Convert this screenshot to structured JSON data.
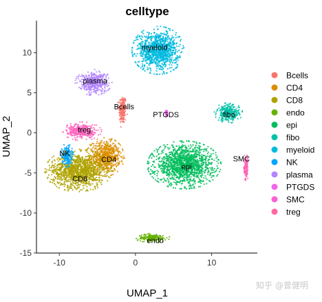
{
  "chart_data": {
    "type": "scatter",
    "title": "celltype",
    "xlabel": "UMAP_1",
    "ylabel": "UMAP_2",
    "xlim": [
      -13,
      16
    ],
    "ylim": [
      -15,
      14
    ],
    "xticks": [
      -10,
      0,
      10
    ],
    "yticks": [
      -15,
      -10,
      -5,
      0,
      5,
      10
    ],
    "grid": false,
    "legend_position": "right",
    "point_size": "tiny",
    "clusters": [
      {
        "name": "Bcells",
        "color": "#F8766D",
        "label": "Bcells",
        "label_pos": [
          -1.5,
          3.2
        ],
        "shape": "ellipse",
        "center": [
          -1.7,
          2.9
        ],
        "spread": [
          0.55,
          2.0
        ]
      },
      {
        "name": "CD4",
        "color": "#DB8E00",
        "label": "CD4",
        "label_pos": [
          -3.5,
          -3.4
        ],
        "shape": "ellipse",
        "center": [
          -4.0,
          -3.0
        ],
        "spread": [
          2.2,
          2.1
        ]
      },
      {
        "name": "CD8",
        "color": "#AEA200",
        "label": "CD8",
        "label_pos": [
          -7.3,
          -5.8
        ],
        "shape": "ellipse",
        "center": [
          -7.5,
          -4.7
        ],
        "spread": [
          3.8,
          2.3
        ]
      },
      {
        "name": "endo",
        "color": "#64B200",
        "label": "endo",
        "label_pos": [
          2.6,
          -13.5
        ],
        "shape": "ellipse",
        "center": [
          2.2,
          -13.1
        ],
        "spread": [
          2.0,
          0.5
        ]
      },
      {
        "name": "epi",
        "color": "#00BD5C",
        "label": "epi",
        "label_pos": [
          6.7,
          -4.3
        ],
        "shape": "ellipse",
        "center": [
          6.4,
          -4.0
        ],
        "spread": [
          4.2,
          2.6
        ]
      },
      {
        "name": "fibo",
        "color": "#00C1A7",
        "label": "fibo",
        "label_pos": [
          12.3,
          2.2
        ],
        "shape": "ellipse",
        "center": [
          12.2,
          2.5
        ],
        "spread": [
          1.6,
          1.1
        ]
      },
      {
        "name": "myeloid",
        "color": "#00BADE",
        "label": "myeloid",
        "label_pos": [
          2.5,
          10.6
        ],
        "shape": "ellipse",
        "center": [
          3.0,
          10.3
        ],
        "spread": [
          3.0,
          2.6
        ]
      },
      {
        "name": "NK",
        "color": "#00A6FF",
        "label": "NK",
        "label_pos": [
          -9.3,
          -2.6
        ],
        "shape": "ellipse",
        "center": [
          -9.0,
          -2.8
        ],
        "spread": [
          0.7,
          1.3
        ]
      },
      {
        "name": "plasma",
        "color": "#B385FF",
        "label": "plasma",
        "label_pos": [
          -5.3,
          6.4
        ],
        "shape": "ellipse",
        "center": [
          -5.5,
          6.3
        ],
        "spread": [
          2.1,
          1.4
        ]
      },
      {
        "name": "PTGDS",
        "color": "#EF67EB",
        "label": "PTGDS",
        "label_pos": [
          4.0,
          2.2
        ],
        "shape": "ellipse",
        "center": [
          4.1,
          2.4
        ],
        "spread": [
          0.18,
          0.45
        ]
      },
      {
        "name": "SMC",
        "color": "#FF63B6",
        "label": "SMC",
        "label_pos": [
          13.9,
          -3.3
        ],
        "shape": "ellipse",
        "center": [
          14.5,
          -4.4
        ],
        "spread": [
          0.3,
          1.6
        ]
      },
      {
        "name": "treg",
        "color": "#FF62BC",
        "label": "treg",
        "label_pos": [
          -6.7,
          0.3
        ],
        "shape": "ellipse",
        "center": [
          -7.0,
          0.2
        ],
        "spread": [
          2.2,
          1.0
        ]
      }
    ]
  },
  "legend": {
    "items": [
      {
        "label": "Bcells",
        "color": "#F8766D"
      },
      {
        "label": "CD4",
        "color": "#DB8E00"
      },
      {
        "label": "CD8",
        "color": "#AEA200"
      },
      {
        "label": "endo",
        "color": "#64B200"
      },
      {
        "label": "epi",
        "color": "#00BD5C"
      },
      {
        "label": "fibo",
        "color": "#00C1A7"
      },
      {
        "label": "myeloid",
        "color": "#00BADE"
      },
      {
        "label": "NK",
        "color": "#00A6FF"
      },
      {
        "label": "plasma",
        "color": "#B385FF"
      },
      {
        "label": "PTGDS",
        "color": "#EF67EB"
      },
      {
        "label": "SMC",
        "color": "#FB61D7"
      },
      {
        "label": "treg",
        "color": "#FF67A4"
      }
    ]
  },
  "watermark": "知乎 @曾健明"
}
